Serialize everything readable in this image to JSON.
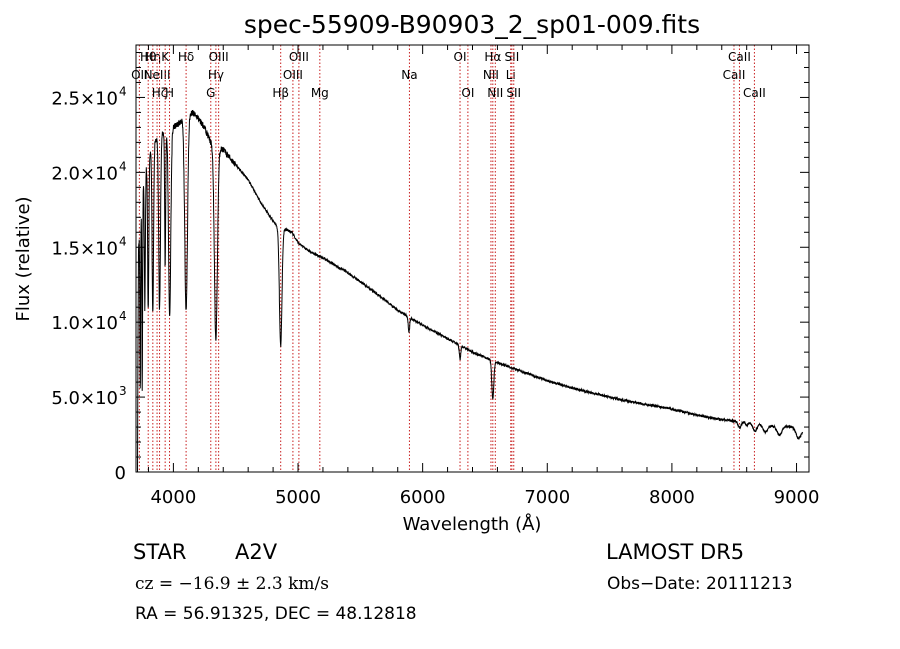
{
  "chart_data": {
    "type": "line",
    "title": "spec-55909-B90903_2_sp01-009.fits",
    "xlabel": "Wavelength (Å)",
    "ylabel": "Flux (relative)",
    "xlim": [
      3700,
      9100
    ],
    "ylim": [
      0,
      28500
    ],
    "grid": false,
    "xticks": [
      {
        "v": 4000,
        "label": "4000"
      },
      {
        "v": 5000,
        "label": "5000"
      },
      {
        "v": 6000,
        "label": "6000"
      },
      {
        "v": 7000,
        "label": "7000"
      },
      {
        "v": 8000,
        "label": "8000"
      },
      {
        "v": 9000,
        "label": "9000"
      }
    ],
    "yticks": [
      {
        "v": 0,
        "m": "0",
        "e": ""
      },
      {
        "v": 5000,
        "m": "5.0×10",
        "e": "3"
      },
      {
        "v": 10000,
        "m": "1.0×10",
        "e": "4"
      },
      {
        "v": 15000,
        "m": "1.5×10",
        "e": "4"
      },
      {
        "v": 20000,
        "m": "2.0×10",
        "e": "4"
      },
      {
        "v": 25000,
        "m": "2.5×10",
        "e": "4"
      }
    ],
    "lines": [
      {
        "w": 3727,
        "label": "OII",
        "row": 1
      },
      {
        "w": 3798,
        "label": "Hθ",
        "row": 0
      },
      {
        "w": 3835,
        "label": "Hη",
        "row": 0
      },
      {
        "w": 3869,
        "label": "NeIII",
        "row": 1
      },
      {
        "w": 3889,
        "label": "Hζ",
        "row": 2
      },
      {
        "w": 3934,
        "label": "K",
        "row": 0
      },
      {
        "w": 3969,
        "label": "H",
        "row": 2
      },
      {
        "w": 4102,
        "label": "Hδ",
        "row": 0
      },
      {
        "w": 4300,
        "label": "G",
        "row": 2
      },
      {
        "w": 4341,
        "label": "Hγ",
        "row": 1
      },
      {
        "w": 4363,
        "label": "OIII",
        "row": 0
      },
      {
        "w": 4861,
        "label": "Hβ",
        "row": 2
      },
      {
        "w": 4959,
        "label": "OIII",
        "row": 1
      },
      {
        "w": 5007,
        "label": "OIII",
        "row": 0
      },
      {
        "w": 5175,
        "label": "Mg",
        "row": 2
      },
      {
        "w": 5894,
        "label": "Na",
        "row": 1
      },
      {
        "w": 6300,
        "label": "OI",
        "row": 0
      },
      {
        "w": 6363,
        "label": "OI",
        "row": 2
      },
      {
        "w": 6548,
        "label": "NII",
        "row": 1
      },
      {
        "w": 6563,
        "label": "Hα",
        "row": 0
      },
      {
        "w": 6583,
        "label": "NII",
        "row": 2
      },
      {
        "w": 6707,
        "label": "Li",
        "row": 1
      },
      {
        "w": 6716,
        "label": "SII",
        "row": 0
      },
      {
        "w": 6731,
        "label": "SII",
        "row": 2
      },
      {
        "w": 8498,
        "label": "CaII",
        "row": 1
      },
      {
        "w": 8542,
        "label": "CaII",
        "row": 0
      },
      {
        "w": 8662,
        "label": "CaII",
        "row": 2
      }
    ],
    "continuum": [
      [
        3720,
        15000
      ],
      [
        3760,
        19500
      ],
      [
        3800,
        21000
      ],
      [
        3850,
        22000
      ],
      [
        3900,
        22500
      ],
      [
        3950,
        22800
      ],
      [
        4000,
        23000
      ],
      [
        4050,
        23300
      ],
      [
        4100,
        23800
      ],
      [
        4150,
        24000
      ],
      [
        4200,
        23600
      ],
      [
        4250,
        23000
      ],
      [
        4300,
        22000
      ],
      [
        4400,
        21500
      ],
      [
        4500,
        20500
      ],
      [
        4600,
        19500
      ],
      [
        4700,
        18000
      ],
      [
        4780,
        17000
      ],
      [
        4850,
        16200
      ],
      [
        4900,
        16200
      ],
      [
        4950,
        16000
      ],
      [
        5000,
        15300
      ],
      [
        5100,
        14700
      ],
      [
        5200,
        14300
      ],
      [
        5400,
        13300
      ],
      [
        5600,
        12100
      ],
      [
        5800,
        10800
      ],
      [
        6000,
        9800
      ],
      [
        6200,
        8900
      ],
      [
        6400,
        8000
      ],
      [
        6600,
        7300
      ],
      [
        6800,
        6700
      ],
      [
        7000,
        6100
      ],
      [
        7200,
        5600
      ],
      [
        7400,
        5200
      ],
      [
        7600,
        4800
      ],
      [
        7800,
        4500
      ],
      [
        8000,
        4200
      ],
      [
        8200,
        3800
      ],
      [
        8400,
        3500
      ],
      [
        8600,
        3300
      ],
      [
        8800,
        3100
      ],
      [
        9000,
        3000
      ],
      [
        9050,
        2800
      ]
    ],
    "absorption": [
      {
        "w": 3734,
        "d": 11000,
        "s": 3
      },
      {
        "w": 3750,
        "d": 13000,
        "s": 3
      },
      {
        "w": 3771,
        "d": 9000,
        "s": 4
      },
      {
        "w": 3798,
        "d": 10000,
        "s": 5
      },
      {
        "w": 3835,
        "d": 11000,
        "s": 6
      },
      {
        "w": 3889,
        "d": 11500,
        "s": 7
      },
      {
        "w": 3934,
        "d": 9000,
        "s": 4
      },
      {
        "w": 3970,
        "d": 12500,
        "s": 9
      },
      {
        "w": 4102,
        "d": 13000,
        "s": 11
      },
      {
        "w": 4341,
        "d": 13000,
        "s": 12
      },
      {
        "w": 4861,
        "d": 7800,
        "s": 10
      },
      {
        "w": 5890,
        "d": 1000,
        "s": 6
      },
      {
        "w": 6300,
        "d": 900,
        "s": 6
      },
      {
        "w": 6563,
        "d": 2600,
        "s": 8
      },
      {
        "w": 8542,
        "d": 400,
        "s": 12
      },
      {
        "w": 8600,
        "d": 200,
        "s": 8
      },
      {
        "w": 8667,
        "d": 500,
        "s": 16
      },
      {
        "w": 8750,
        "d": 500,
        "s": 18
      },
      {
        "w": 8863,
        "d": 600,
        "s": 20
      },
      {
        "w": 9015,
        "d": 700,
        "s": 20
      }
    ]
  },
  "info": {
    "object_class": "STAR",
    "subclass": "A2V",
    "survey": "LAMOST  DR5",
    "velocity": "cz = −16.9 ± 2.3 km/s",
    "obs_date": "Obs−Date: 20111213",
    "coords": "RA =  56.91325, DEC =  48.12818"
  }
}
